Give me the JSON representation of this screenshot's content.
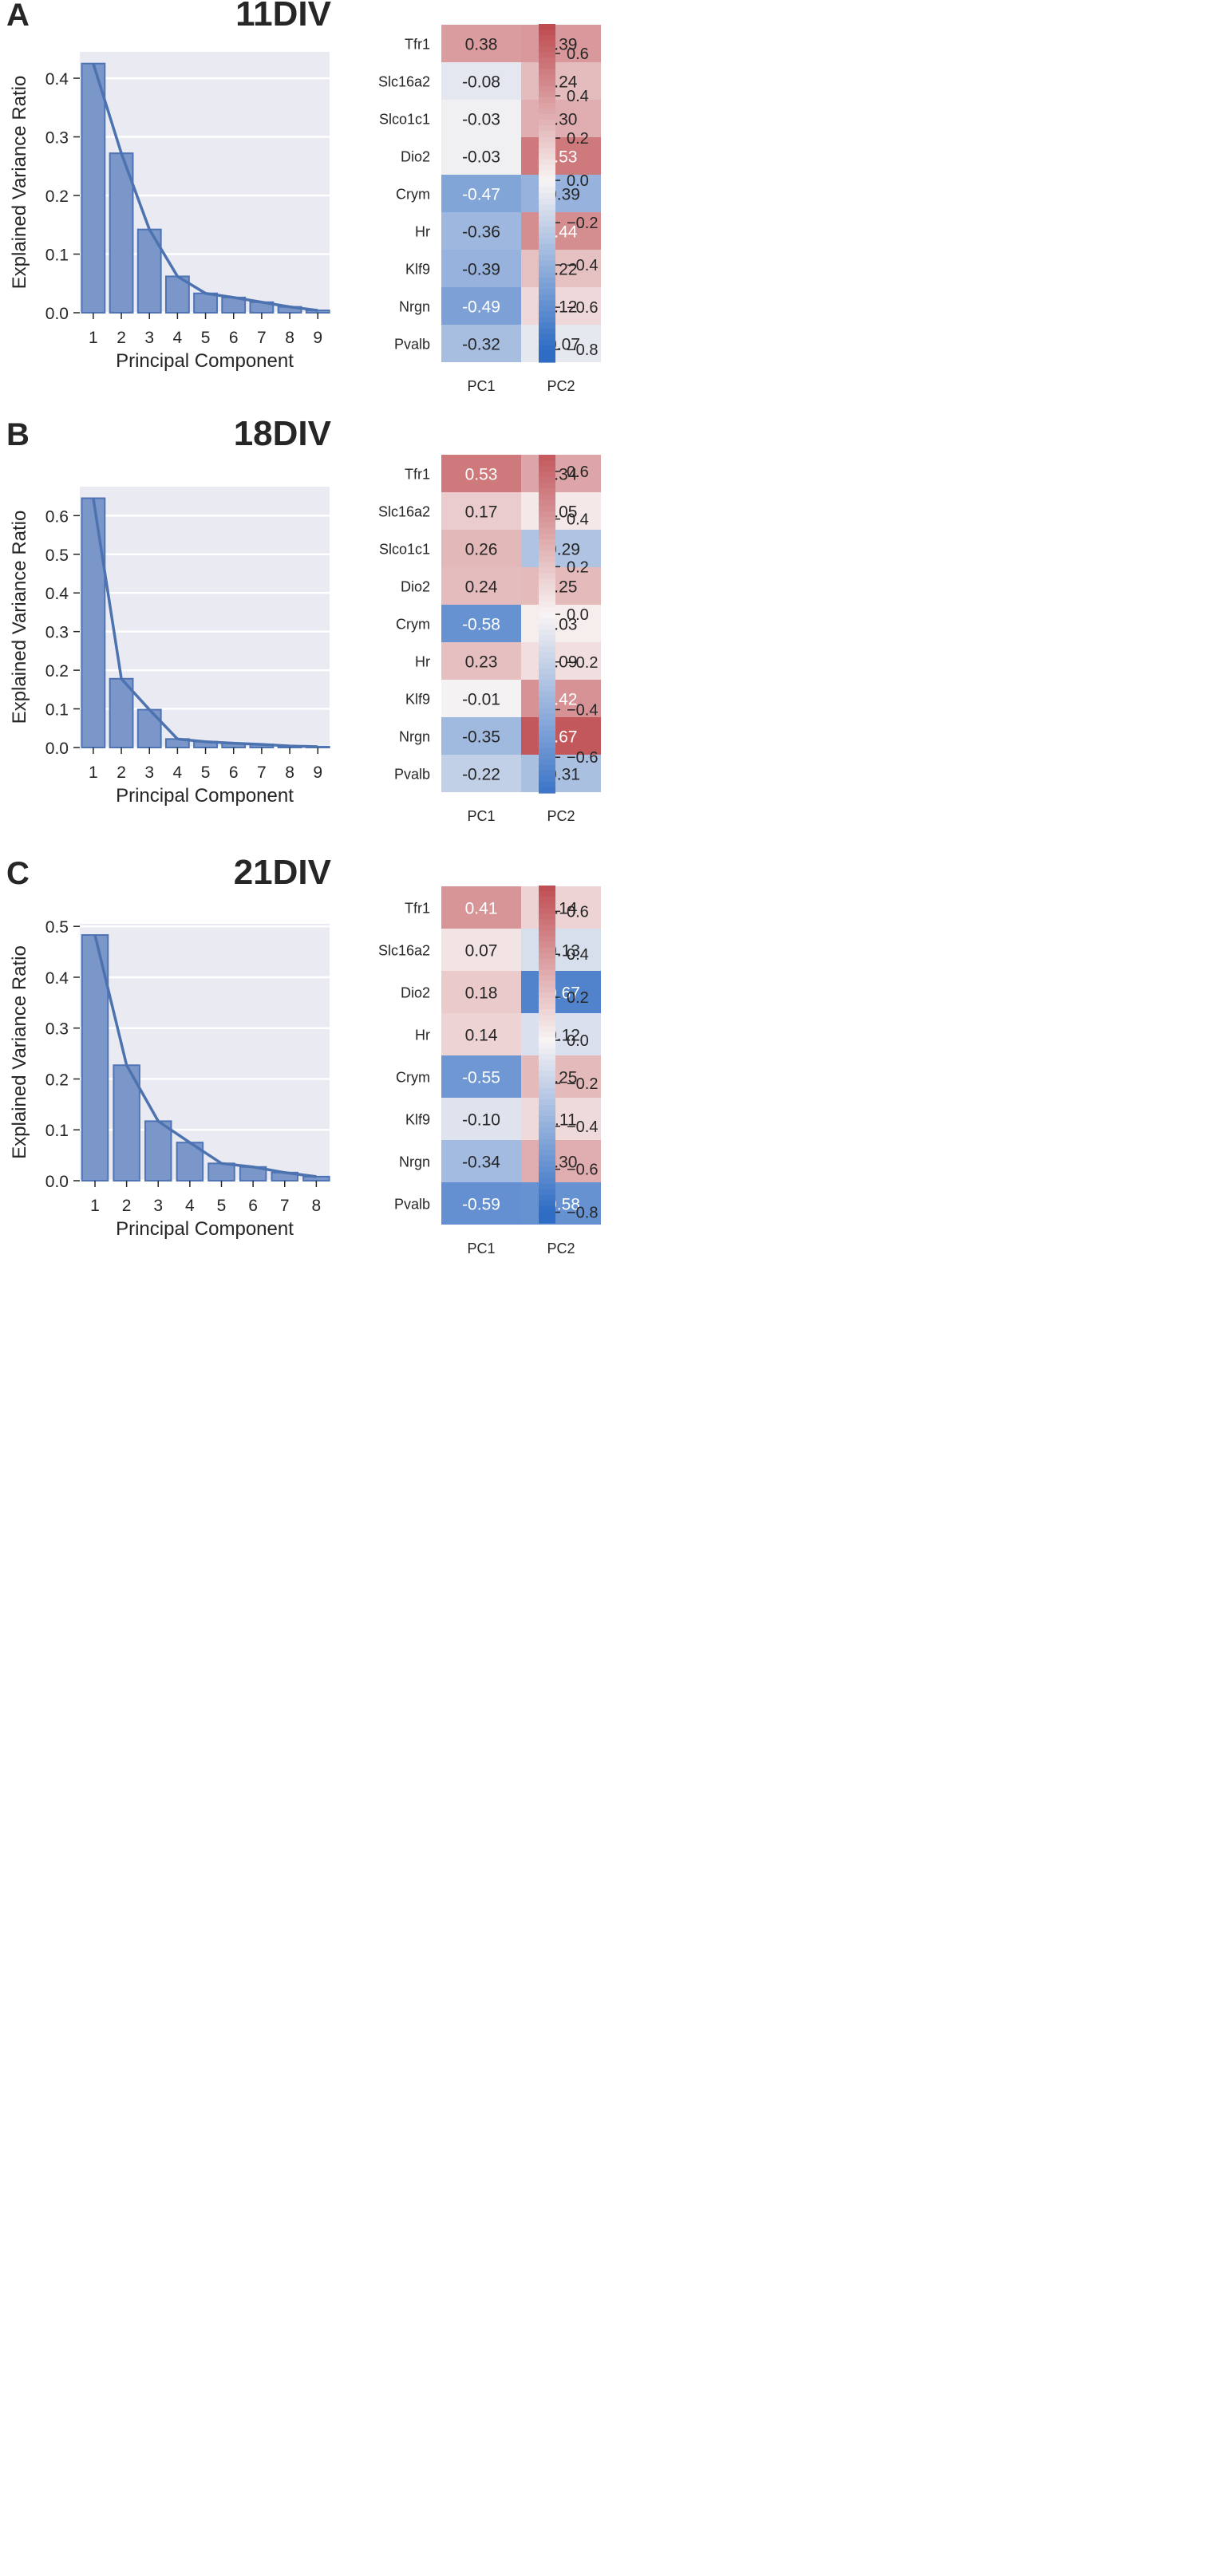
{
  "chart_data": [
    {
      "panel_letter": "A",
      "title": "11DIV",
      "scree": {
        "type": "bar",
        "xlabel": "Principal Component",
        "ylabel": "Explained Variance Ratio",
        "categories": [
          "1",
          "2",
          "3",
          "4",
          "5",
          "6",
          "7",
          "8",
          "9"
        ],
        "values": [
          0.425,
          0.272,
          0.142,
          0.062,
          0.033,
          0.026,
          0.018,
          0.01,
          0.004
        ],
        "cumulative_line": false,
        "ylim": [
          0,
          0.445
        ],
        "yticks": [
          0.0,
          0.1,
          0.2,
          0.3,
          0.4
        ],
        "ytick_labels": [
          "0.0",
          "0.1",
          "0.2",
          "0.3",
          "0.4"
        ]
      },
      "heatmap": {
        "type": "heatmap",
        "rows": [
          "Tfr1",
          "Slc16a2",
          "Slco1c1",
          "Dio2",
          "Crym",
          "Hr",
          "Klf9",
          "Nrgn",
          "Pvalb"
        ],
        "columns": [
          "PC1",
          "PC2"
        ],
        "values": [
          [
            0.38,
            0.39
          ],
          [
            -0.08,
            0.24
          ],
          [
            -0.03,
            0.3
          ],
          [
            -0.03,
            0.53
          ],
          [
            -0.47,
            -0.39
          ],
          [
            -0.36,
            0.44
          ],
          [
            -0.39,
            0.22
          ],
          [
            -0.49,
            0.12
          ],
          [
            -0.32,
            -0.07
          ]
        ],
        "cell_labels": [
          [
            "0.38",
            "0.39"
          ],
          [
            "-0.08",
            "0.24"
          ],
          [
            "-0.03",
            "0.30"
          ],
          [
            "-0.03",
            "0.53"
          ],
          [
            "-0.47",
            "-0.39"
          ],
          [
            "-0.36",
            "0.44"
          ],
          [
            "-0.39",
            "0.22"
          ],
          [
            "-0.49",
            "0.12"
          ],
          [
            "-0.32",
            "-0.07"
          ]
        ],
        "colorbar": {
          "range": [
            -0.86,
            0.74
          ],
          "ticks": [
            0.6,
            0.4,
            0.2,
            0.0,
            -0.2,
            -0.4,
            -0.6,
            -0.8
          ],
          "tick_labels": [
            "0.6",
            "0.4",
            "0.2",
            "0.0",
            "−0.2",
            "−0.4",
            "−0.6",
            "−0.8"
          ]
        }
      }
    },
    {
      "panel_letter": "B",
      "title": "18DIV",
      "scree": {
        "type": "bar",
        "xlabel": "Principal Component",
        "ylabel": "Explained Variance Ratio",
        "categories": [
          "1",
          "2",
          "3",
          "4",
          "5",
          "6",
          "7",
          "8",
          "9"
        ],
        "values": [
          0.645,
          0.178,
          0.098,
          0.022,
          0.015,
          0.011,
          0.008,
          0.004,
          0.002
        ],
        "ylim": [
          0,
          0.675
        ],
        "yticks": [
          0.0,
          0.1,
          0.2,
          0.3,
          0.4,
          0.5,
          0.6
        ],
        "ytick_labels": [
          "0.0",
          "0.1",
          "0.2",
          "0.3",
          "0.4",
          "0.5",
          "0.6"
        ]
      },
      "heatmap": {
        "type": "heatmap",
        "rows": [
          "Tfr1",
          "Slc16a2",
          "Slco1c1",
          "Dio2",
          "Crym",
          "Hr",
          "Klf9",
          "Nrgn",
          "Pvalb"
        ],
        "columns": [
          "PC1",
          "PC2"
        ],
        "values": [
          [
            0.53,
            0.34
          ],
          [
            0.17,
            0.05
          ],
          [
            0.26,
            -0.29
          ],
          [
            0.24,
            0.25
          ],
          [
            -0.58,
            0.03
          ],
          [
            0.23,
            0.09
          ],
          [
            -0.01,
            0.42
          ],
          [
            -0.35,
            0.67
          ],
          [
            -0.22,
            -0.31
          ]
        ],
        "cell_labels": [
          [
            "0.53",
            "0.34"
          ],
          [
            "0.17",
            "0.05"
          ],
          [
            "0.26",
            "-0.29"
          ],
          [
            "0.24",
            "0.25"
          ],
          [
            "-0.58",
            "0.03"
          ],
          [
            "0.23",
            "0.09"
          ],
          [
            "-0.01",
            "0.42"
          ],
          [
            "-0.35",
            "0.67"
          ],
          [
            "-0.22",
            "-0.31"
          ]
        ],
        "colorbar": {
          "range": [
            -0.75,
            0.67
          ],
          "ticks": [
            0.6,
            0.4,
            0.2,
            0.0,
            -0.2,
            -0.4,
            -0.6
          ],
          "tick_labels": [
            "0.6",
            "0.4",
            "0.2",
            "0.0",
            "−0.2",
            "−0.4",
            "−0.6"
          ]
        }
      }
    },
    {
      "panel_letter": "C",
      "title": "21DIV",
      "scree": {
        "type": "bar",
        "xlabel": "Principal Component",
        "ylabel": "Explained Variance Ratio",
        "categories": [
          "1",
          "2",
          "3",
          "4",
          "5",
          "6",
          "7",
          "8"
        ],
        "values": [
          0.483,
          0.227,
          0.117,
          0.075,
          0.034,
          0.027,
          0.016,
          0.008
        ],
        "ylim": [
          0,
          0.505
        ],
        "yticks": [
          0.0,
          0.1,
          0.2,
          0.3,
          0.4,
          0.5
        ],
        "ytick_labels": [
          "0.0",
          "0.1",
          "0.2",
          "0.3",
          "0.4",
          "0.5"
        ]
      },
      "heatmap": {
        "type": "heatmap",
        "rows": [
          "Tfr1",
          "Slc16a2",
          "Dio2",
          "Hr",
          "Crym",
          "Klf9",
          "Nrgn",
          "Pvalb"
        ],
        "columns": [
          "PC1",
          "PC2"
        ],
        "values": [
          [
            0.41,
            0.14
          ],
          [
            0.07,
            -0.13
          ],
          [
            0.18,
            -0.67
          ],
          [
            0.14,
            -0.12
          ],
          [
            -0.55,
            0.25
          ],
          [
            -0.1,
            0.11
          ],
          [
            -0.34,
            0.3
          ],
          [
            -0.59,
            -0.58
          ]
        ],
        "cell_labels": [
          [
            "0.41",
            "0.14"
          ],
          [
            "0.07",
            "-0.13"
          ],
          [
            "0.18",
            "-0.67"
          ],
          [
            "0.14",
            "-0.12"
          ],
          [
            "-0.55",
            "0.25"
          ],
          [
            "-0.10",
            "0.11"
          ],
          [
            "-0.34",
            "0.30"
          ],
          [
            "-0.59",
            "-0.58"
          ]
        ],
        "colorbar": {
          "range": [
            -0.85,
            0.72
          ],
          "ticks": [
            0.6,
            0.4,
            0.2,
            0.0,
            -0.2,
            -0.4,
            -0.6,
            -0.8
          ],
          "tick_labels": [
            "0.6",
            "0.4",
            "0.2",
            "0.0",
            "−0.2",
            "−0.4",
            "−0.6",
            "−0.8"
          ]
        }
      }
    }
  ],
  "colors": {
    "bar_fill": "#7b97c9",
    "bar_edge": "#4e74b6",
    "line": "#4c72b0",
    "plot_bg": "#eaeaf2",
    "grid": "#ffffff",
    "cmap_neg": "#2f6dc4",
    "cmap_mid": "#f8f4f4",
    "cmap_pos": "#b83a3f",
    "text": "#262626"
  }
}
